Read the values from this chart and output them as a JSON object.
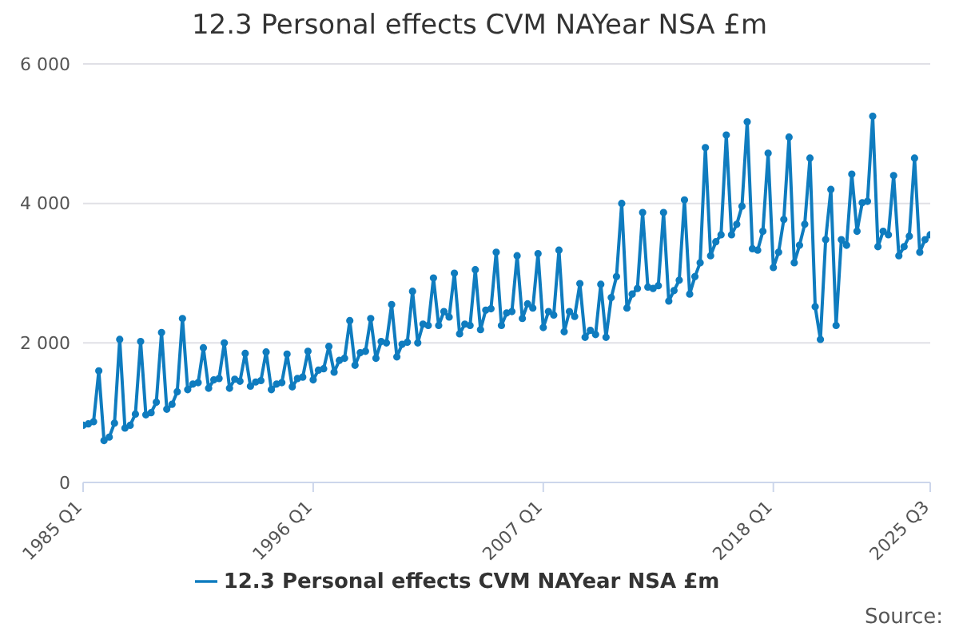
{
  "chart_data": {
    "type": "line",
    "title": "12.3 Personal effects CVM NAYear NSA £m",
    "categories": [
      "1985 Q1",
      null,
      null,
      null,
      null,
      null,
      null,
      null,
      null,
      null,
      null,
      null,
      null,
      null,
      null,
      null,
      null,
      null,
      null,
      null,
      null,
      null,
      null,
      null,
      null,
      null,
      null,
      null,
      null,
      null,
      null,
      null,
      null,
      null,
      null,
      null,
      null,
      null,
      null,
      null,
      null,
      null,
      null,
      null,
      "1996 Q1",
      null,
      null,
      null,
      null,
      null,
      null,
      null,
      null,
      null,
      null,
      null,
      null,
      null,
      null,
      null,
      null,
      null,
      null,
      null,
      null,
      null,
      null,
      null,
      null,
      null,
      null,
      null,
      null,
      null,
      null,
      null,
      null,
      null,
      null,
      null,
      null,
      null,
      null,
      null,
      null,
      null,
      null,
      null,
      "2007 Q1",
      null,
      null,
      null,
      null,
      null,
      null,
      null,
      null,
      null,
      null,
      null,
      null,
      null,
      null,
      null,
      null,
      null,
      null,
      null,
      null,
      null,
      null,
      null,
      null,
      null,
      null,
      null,
      null,
      null,
      null,
      null,
      null,
      null,
      null,
      null,
      null,
      null,
      null,
      null,
      null,
      null,
      null,
      null,
      "2018 Q1",
      null,
      null,
      null,
      null,
      null,
      null,
      null,
      null,
      null,
      null,
      null,
      null,
      null,
      null,
      null,
      null,
      null,
      null,
      null,
      null,
      null,
      null,
      null,
      null,
      null,
      null,
      null,
      null,
      null,
      "2025 Q3"
    ],
    "series": [
      {
        "name": "12.3 Personal effects CVM NAYear NSA £m",
        "color": "#0f7cbf",
        "values": [
          820,
          840,
          870,
          1600,
          600,
          650,
          850,
          2050,
          780,
          820,
          980,
          2020,
          970,
          1000,
          1150,
          2150,
          1050,
          1120,
          1300,
          2350,
          1330,
          1410,
          1430,
          1930,
          1350,
          1470,
          1490,
          2000,
          1350,
          1480,
          1450,
          1850,
          1380,
          1440,
          1460,
          1870,
          1330,
          1410,
          1430,
          1840,
          1370,
          1490,
          1510,
          1880,
          1470,
          1610,
          1630,
          1950,
          1580,
          1750,
          1780,
          2320,
          1680,
          1860,
          1880,
          2350,
          1780,
          2020,
          2000,
          2550,
          1800,
          1980,
          2010,
          2740,
          2000,
          2270,
          2250,
          2930,
          2250,
          2450,
          2370,
          3000,
          2130,
          2270,
          2250,
          3050,
          2190,
          2470,
          2490,
          3300,
          2250,
          2430,
          2450,
          3250,
          2350,
          2560,
          2500,
          3280,
          2220,
          2450,
          2400,
          3330,
          2160,
          2450,
          2380,
          2850,
          2080,
          2180,
          2120,
          2840,
          2080,
          2650,
          2950,
          4000,
          2500,
          2700,
          2780,
          3870,
          2800,
          2780,
          2820,
          3870,
          2600,
          2750,
          2900,
          4050,
          2700,
          2950,
          3150,
          4800,
          3250,
          3450,
          3550,
          4980,
          3550,
          3700,
          3960,
          5170,
          3350,
          3330,
          3600,
          4720,
          3080,
          3300,
          3770,
          4950,
          3150,
          3400,
          3700,
          4650,
          2520,
          2050,
          3480,
          4200,
          2250,
          3480,
          3400,
          4420,
          3600,
          4010,
          4030,
          5250,
          3380,
          3600,
          3550,
          4400,
          3250,
          3380,
          3530,
          4650,
          3300,
          3480,
          3550
        ]
      }
    ],
    "ylim": [
      0,
      6000
    ],
    "yticks": [
      0,
      {
        "value": 2000,
        "label": "2 000"
      },
      {
        "value": 4000,
        "label": "4 000"
      },
      {
        "value": 6000,
        "label": "6 000"
      }
    ],
    "grid": "y",
    "legend": "bottom",
    "marker": "circle",
    "line_style": "solid",
    "annotations": [
      "Source:"
    ]
  }
}
